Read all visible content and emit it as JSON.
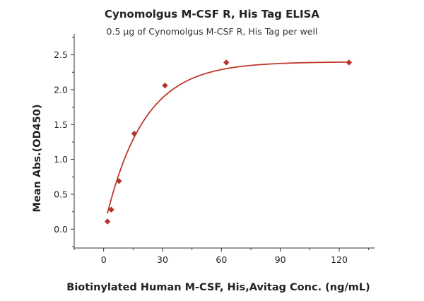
{
  "chart_data": {
    "type": "scatter",
    "title": "Cynomolgus M-CSF R, His Tag ELISA",
    "subtitle": "0.5 μg of Cynomolgus M-CSF R, His Tag per well",
    "xlabel": "Biotinylated Human M-CSF, His,Avitag Conc. (ng/mL)",
    "ylabel": "Mean Abs.(OD450)",
    "xlim": [
      -15,
      138
    ],
    "ylim": [
      -0.27,
      2.8
    ],
    "xticks": [
      0,
      30,
      60,
      90,
      120
    ],
    "yticks": [
      0.0,
      0.5,
      1.0,
      1.5,
      2.0,
      2.5
    ],
    "xtick_labels": [
      "0",
      "30",
      "60",
      "90",
      "120"
    ],
    "ytick_labels": [
      "0.0",
      "0.5",
      "1.0",
      "1.5",
      "2.0",
      "2.5"
    ],
    "grid": false,
    "series": [
      {
        "marker": "diamond",
        "color": "#b5342f",
        "x": [
          1.95,
          3.9,
          7.8,
          15.6,
          31.25,
          62.5,
          125
        ],
        "y": [
          0.11,
          0.28,
          0.69,
          1.37,
          2.06,
          2.39,
          2.39
        ]
      }
    ],
    "fit": {
      "color": "#c0392b",
      "model": "y = A * (1 - exp(-k * x))",
      "A": 2.4,
      "k": 0.0512,
      "x_range": [
        1.95,
        125
      ]
    }
  }
}
